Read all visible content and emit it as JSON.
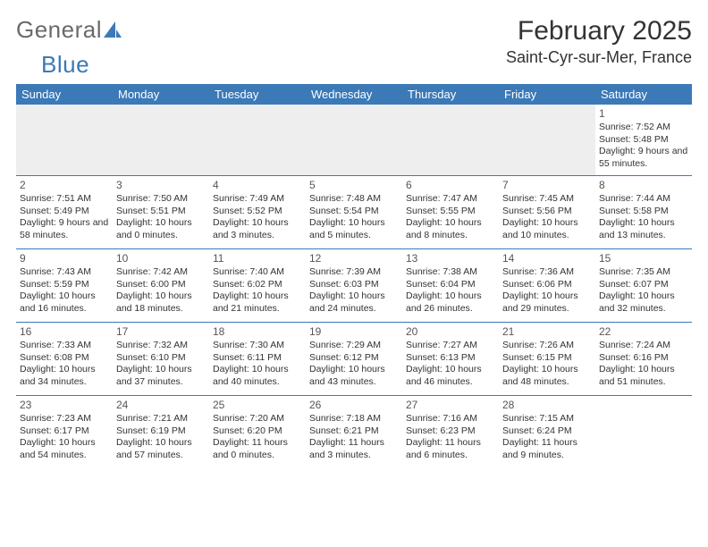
{
  "logo": {
    "text_general": "Genera",
    "text_l": "l",
    "text_blue": "Blue"
  },
  "header": {
    "month_title": "February 2025",
    "location": "Saint-Cyr-sur-Mer, France"
  },
  "colors": {
    "brand_blue": "#3b79b7",
    "text_gray": "#6a6a6a",
    "body_text": "#333333",
    "empty_bg": "#eeeeee"
  },
  "weekdays": [
    "Sunday",
    "Monday",
    "Tuesday",
    "Wednesday",
    "Thursday",
    "Friday",
    "Saturday"
  ],
  "weeks": [
    [
      null,
      null,
      null,
      null,
      null,
      null,
      {
        "n": "1",
        "sr": "Sunrise: 7:52 AM",
        "ss": "Sunset: 5:48 PM",
        "dl": "Daylight: 9 hours and 55 minutes."
      }
    ],
    [
      {
        "n": "2",
        "sr": "Sunrise: 7:51 AM",
        "ss": "Sunset: 5:49 PM",
        "dl": "Daylight: 9 hours and 58 minutes."
      },
      {
        "n": "3",
        "sr": "Sunrise: 7:50 AM",
        "ss": "Sunset: 5:51 PM",
        "dl": "Daylight: 10 hours and 0 minutes."
      },
      {
        "n": "4",
        "sr": "Sunrise: 7:49 AM",
        "ss": "Sunset: 5:52 PM",
        "dl": "Daylight: 10 hours and 3 minutes."
      },
      {
        "n": "5",
        "sr": "Sunrise: 7:48 AM",
        "ss": "Sunset: 5:54 PM",
        "dl": "Daylight: 10 hours and 5 minutes."
      },
      {
        "n": "6",
        "sr": "Sunrise: 7:47 AM",
        "ss": "Sunset: 5:55 PM",
        "dl": "Daylight: 10 hours and 8 minutes."
      },
      {
        "n": "7",
        "sr": "Sunrise: 7:45 AM",
        "ss": "Sunset: 5:56 PM",
        "dl": "Daylight: 10 hours and 10 minutes."
      },
      {
        "n": "8",
        "sr": "Sunrise: 7:44 AM",
        "ss": "Sunset: 5:58 PM",
        "dl": "Daylight: 10 hours and 13 minutes."
      }
    ],
    [
      {
        "n": "9",
        "sr": "Sunrise: 7:43 AM",
        "ss": "Sunset: 5:59 PM",
        "dl": "Daylight: 10 hours and 16 minutes."
      },
      {
        "n": "10",
        "sr": "Sunrise: 7:42 AM",
        "ss": "Sunset: 6:00 PM",
        "dl": "Daylight: 10 hours and 18 minutes."
      },
      {
        "n": "11",
        "sr": "Sunrise: 7:40 AM",
        "ss": "Sunset: 6:02 PM",
        "dl": "Daylight: 10 hours and 21 minutes."
      },
      {
        "n": "12",
        "sr": "Sunrise: 7:39 AM",
        "ss": "Sunset: 6:03 PM",
        "dl": "Daylight: 10 hours and 24 minutes."
      },
      {
        "n": "13",
        "sr": "Sunrise: 7:38 AM",
        "ss": "Sunset: 6:04 PM",
        "dl": "Daylight: 10 hours and 26 minutes."
      },
      {
        "n": "14",
        "sr": "Sunrise: 7:36 AM",
        "ss": "Sunset: 6:06 PM",
        "dl": "Daylight: 10 hours and 29 minutes."
      },
      {
        "n": "15",
        "sr": "Sunrise: 7:35 AM",
        "ss": "Sunset: 6:07 PM",
        "dl": "Daylight: 10 hours and 32 minutes."
      }
    ],
    [
      {
        "n": "16",
        "sr": "Sunrise: 7:33 AM",
        "ss": "Sunset: 6:08 PM",
        "dl": "Daylight: 10 hours and 34 minutes."
      },
      {
        "n": "17",
        "sr": "Sunrise: 7:32 AM",
        "ss": "Sunset: 6:10 PM",
        "dl": "Daylight: 10 hours and 37 minutes."
      },
      {
        "n": "18",
        "sr": "Sunrise: 7:30 AM",
        "ss": "Sunset: 6:11 PM",
        "dl": "Daylight: 10 hours and 40 minutes."
      },
      {
        "n": "19",
        "sr": "Sunrise: 7:29 AM",
        "ss": "Sunset: 6:12 PM",
        "dl": "Daylight: 10 hours and 43 minutes."
      },
      {
        "n": "20",
        "sr": "Sunrise: 7:27 AM",
        "ss": "Sunset: 6:13 PM",
        "dl": "Daylight: 10 hours and 46 minutes."
      },
      {
        "n": "21",
        "sr": "Sunrise: 7:26 AM",
        "ss": "Sunset: 6:15 PM",
        "dl": "Daylight: 10 hours and 48 minutes."
      },
      {
        "n": "22",
        "sr": "Sunrise: 7:24 AM",
        "ss": "Sunset: 6:16 PM",
        "dl": "Daylight: 10 hours and 51 minutes."
      }
    ],
    [
      {
        "n": "23",
        "sr": "Sunrise: 7:23 AM",
        "ss": "Sunset: 6:17 PM",
        "dl": "Daylight: 10 hours and 54 minutes."
      },
      {
        "n": "24",
        "sr": "Sunrise: 7:21 AM",
        "ss": "Sunset: 6:19 PM",
        "dl": "Daylight: 10 hours and 57 minutes."
      },
      {
        "n": "25",
        "sr": "Sunrise: 7:20 AM",
        "ss": "Sunset: 6:20 PM",
        "dl": "Daylight: 11 hours and 0 minutes."
      },
      {
        "n": "26",
        "sr": "Sunrise: 7:18 AM",
        "ss": "Sunset: 6:21 PM",
        "dl": "Daylight: 11 hours and 3 minutes."
      },
      {
        "n": "27",
        "sr": "Sunrise: 7:16 AM",
        "ss": "Sunset: 6:23 PM",
        "dl": "Daylight: 11 hours and 6 minutes."
      },
      {
        "n": "28",
        "sr": "Sunrise: 7:15 AM",
        "ss": "Sunset: 6:24 PM",
        "dl": "Daylight: 11 hours and 9 minutes."
      },
      null
    ]
  ]
}
